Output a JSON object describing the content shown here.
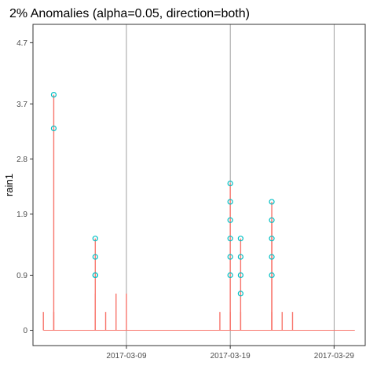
{
  "chart_data": {
    "type": "line",
    "title": "2% Anomalies (alpha=0.05, direction=both)",
    "xlabel": "",
    "ylabel": "rain1",
    "x_start": "2017-02-28",
    "x_end": "2017-04-01",
    "x_ticks": [
      "2017-03-09",
      "2017-03-19",
      "2017-03-29"
    ],
    "ylim": [
      -0.25,
      5.0
    ],
    "y_ticks": [
      0,
      0.9,
      1.9,
      2.8,
      3.7,
      4.7
    ],
    "grid": "vertical major gridlines only",
    "colors": {
      "series": "#f8766d",
      "anomaly": "#00bfc4",
      "grid": "#888888",
      "frame": "#333333"
    },
    "series": [
      {
        "values": [
          [
            "2017-03-01",
            0.3
          ],
          [
            "2017-03-02",
            0.3
          ],
          [
            "2017-03-02",
            3.85
          ],
          [
            "2017-03-06",
            0.6
          ],
          [
            "2017-03-06",
            1.5
          ],
          [
            "2017-03-06",
            0.3
          ],
          [
            "2017-03-07",
            0.3
          ],
          [
            "2017-03-08",
            0.6
          ],
          [
            "2017-03-09",
            0.6
          ],
          [
            "2017-03-18",
            0.3
          ],
          [
            "2017-03-19",
            2.4
          ],
          [
            "2017-03-19",
            0.3
          ],
          [
            "2017-03-20",
            1.5
          ],
          [
            "2017-03-20",
            0.3
          ],
          [
            "2017-03-23",
            2.1
          ],
          [
            "2017-03-23",
            1.8
          ],
          [
            "2017-03-23",
            0.3
          ],
          [
            "2017-03-24",
            0.3
          ],
          [
            "2017-03-25",
            0.3
          ]
        ]
      }
    ],
    "anomalies": [
      [
        "2017-03-02",
        3.85
      ],
      [
        "2017-03-02",
        3.3
      ],
      [
        "2017-03-06",
        1.5
      ],
      [
        "2017-03-06",
        1.2
      ],
      [
        "2017-03-06",
        0.9
      ],
      [
        "2017-03-06",
        0.9
      ],
      [
        "2017-03-19",
        2.4
      ],
      [
        "2017-03-19",
        2.1
      ],
      [
        "2017-03-19",
        1.8
      ],
      [
        "2017-03-19",
        1.5
      ],
      [
        "2017-03-19",
        1.2
      ],
      [
        "2017-03-19",
        0.9
      ],
      [
        "2017-03-20",
        1.5
      ],
      [
        "2017-03-20",
        1.2
      ],
      [
        "2017-03-20",
        0.9
      ],
      [
        "2017-03-20",
        0.6
      ],
      [
        "2017-03-23",
        2.1
      ],
      [
        "2017-03-23",
        1.8
      ],
      [
        "2017-03-23",
        1.5
      ],
      [
        "2017-03-23",
        1.2
      ],
      [
        "2017-03-23",
        0.9
      ]
    ]
  }
}
